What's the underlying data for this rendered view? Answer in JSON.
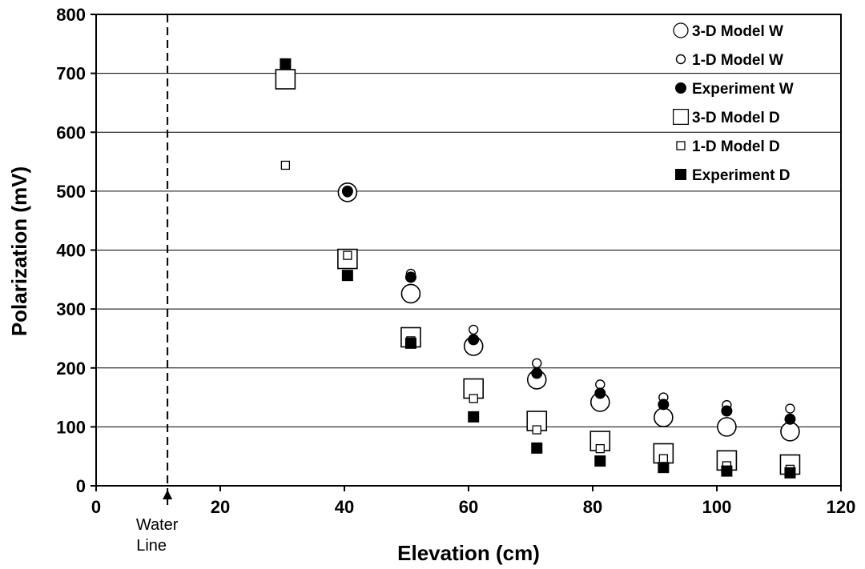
{
  "chart_data": {
    "type": "scatter",
    "xlabel": "Elevation (cm)",
    "ylabel": "Polarization (mV)",
    "xlim": [
      0,
      120
    ],
    "ylim": [
      0,
      800
    ],
    "xticks": [
      0,
      20,
      40,
      60,
      80,
      100,
      120
    ],
    "yticks": [
      0,
      100,
      200,
      300,
      400,
      500,
      600,
      700,
      800
    ],
    "grid": "horizontal",
    "legend_position": "top-right",
    "series": [
      {
        "name": "3-D Model W",
        "marker": "circle-large-open",
        "x": [
          40.5,
          50.7,
          60.8,
          71.0,
          81.2,
          91.4,
          101.6,
          111.8
        ],
        "y": [
          498,
          326,
          237,
          180,
          142,
          116,
          100,
          92
        ]
      },
      {
        "name": "1-D Model W",
        "marker": "circle-small-open",
        "x": [
          40.5,
          50.7,
          60.8,
          71.0,
          81.2,
          91.4,
          101.6,
          111.8
        ],
        "y": [
          498,
          360,
          265,
          208,
          172,
          150,
          137,
          131
        ]
      },
      {
        "name": "Experiment W",
        "marker": "circle-filled",
        "x": [
          40.5,
          50.7,
          60.8,
          71.0,
          81.2,
          91.4,
          101.6,
          111.8
        ],
        "y": [
          500,
          354,
          248,
          191,
          157,
          138,
          127,
          113
        ]
      },
      {
        "name": "3-D Model D",
        "marker": "square-large-open",
        "x": [
          30.5,
          40.5,
          50.7,
          60.8,
          71.0,
          81.2,
          91.4,
          101.6,
          111.8
        ],
        "y": [
          690,
          385,
          252,
          165,
          110,
          76,
          55,
          43,
          36
        ]
      },
      {
        "name": "1-D Model D",
        "marker": "square-small-open",
        "x": [
          30.5,
          40.5,
          50.7,
          60.8,
          71.0,
          81.2,
          91.4,
          101.6,
          111.8
        ],
        "y": [
          544,
          391,
          246,
          148,
          95,
          63,
          46,
          34,
          28
        ]
      },
      {
        "name": "Experiment D",
        "marker": "square-filled",
        "x": [
          30.5,
          40.5,
          50.7,
          60.8,
          71.0,
          81.2,
          91.4,
          101.6,
          111.8
        ],
        "y": [
          716,
          357,
          242,
          117,
          64,
          42,
          31,
          25,
          22
        ]
      }
    ],
    "annotations": {
      "water_line_x": 11.5,
      "water_line_label_1": "Water",
      "water_line_label_2": "Line"
    }
  }
}
